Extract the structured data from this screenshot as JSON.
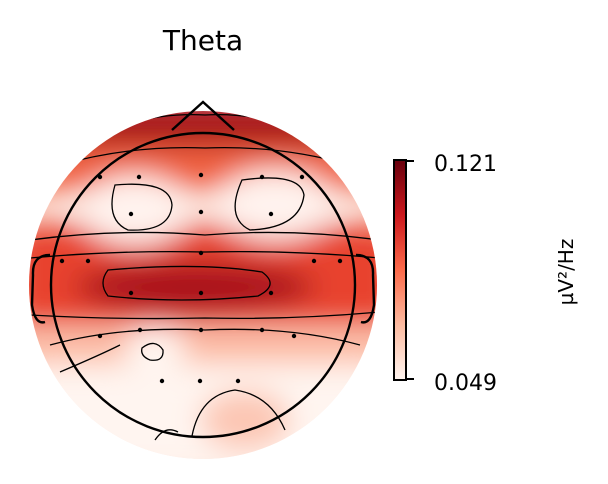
{
  "chart_data": {
    "type": "heatmap",
    "title": "Theta",
    "colorbar": {
      "label": "µV²/Hz",
      "max_label": "0.121",
      "min_label": "0.049",
      "range": [
        0.049,
        0.121
      ],
      "colormap": "Reds",
      "colors": [
        "#fff5f0",
        "#fcbba1",
        "#fb6a4a",
        "#cb181d",
        "#67000d"
      ]
    }
  }
}
